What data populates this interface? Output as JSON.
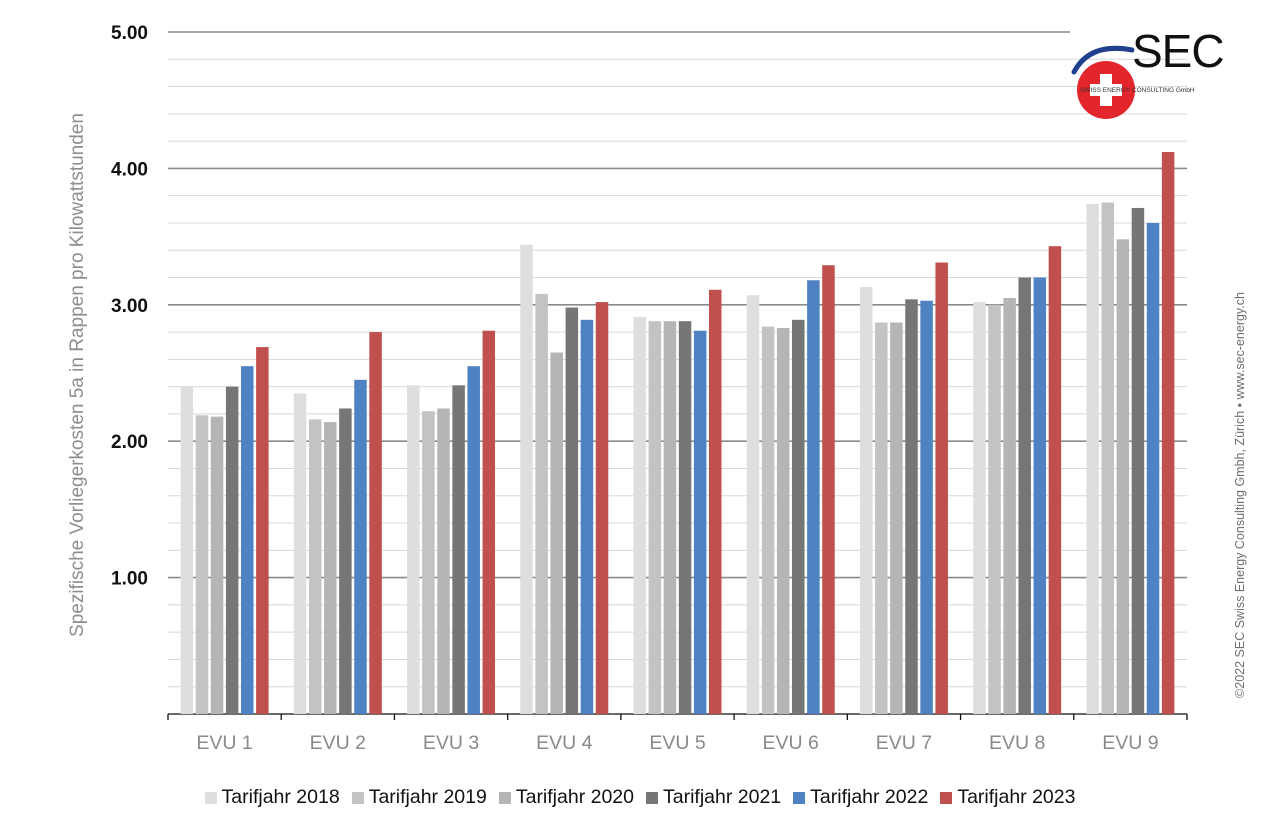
{
  "chart_data": {
    "type": "bar",
    "categories": [
      "EVU 1",
      "EVU 2",
      "EVU 3",
      "EVU 4",
      "EVU 5",
      "EVU 6",
      "EVU 7",
      "EVU 8",
      "EVU 9"
    ],
    "series": [
      {
        "name": "Tarifjahr 2018",
        "color": "#dedede",
        "values": [
          2.4,
          2.35,
          2.41,
          3.44,
          2.91,
          3.07,
          3.13,
          3.02,
          3.74
        ]
      },
      {
        "name": "Tarifjahr 2019",
        "color": "#c3c3c3",
        "values": [
          2.19,
          2.16,
          2.22,
          3.08,
          2.88,
          2.84,
          2.87,
          3.0,
          3.75
        ]
      },
      {
        "name": "Tarifjahr 2020",
        "color": "#b5b5b5",
        "values": [
          2.18,
          2.14,
          2.24,
          2.65,
          2.88,
          2.83,
          2.87,
          3.05,
          3.48
        ]
      },
      {
        "name": "Tarifjahr 2021",
        "color": "#767676",
        "values": [
          2.4,
          2.24,
          2.41,
          2.98,
          2.88,
          2.89,
          3.04,
          3.2,
          3.71
        ]
      },
      {
        "name": "Tarifjahr 2022",
        "color": "#4f82c2",
        "values": [
          2.55,
          2.45,
          2.55,
          2.89,
          2.81,
          3.18,
          3.03,
          3.2,
          3.6
        ]
      },
      {
        "name": "Tarifjahr 2023",
        "color": "#c0504d",
        "values": [
          2.69,
          2.8,
          2.81,
          3.02,
          3.11,
          3.29,
          3.31,
          3.43,
          4.12
        ]
      }
    ],
    "ylim": [
      0,
      5
    ],
    "yticks": [
      "1.00",
      "2.00",
      "3.00",
      "4.00",
      "5.00"
    ],
    "ylabel": "Spezifische Vorliegerkosten 5a in Rappen pro Kilowattstunden",
    "xlabel": "",
    "grid": true,
    "legend_position": "bottom"
  },
  "copyright": "©2022 SEC Swiss Energy Consulting Gmbh, Zürich • www.sec-energy.ch",
  "logo": {
    "text": "SEC",
    "subtext": "SWISS ENERGY CONSULTING GmbH",
    "colors": {
      "red": "#e3262c",
      "blue": "#1f3f8f"
    }
  }
}
